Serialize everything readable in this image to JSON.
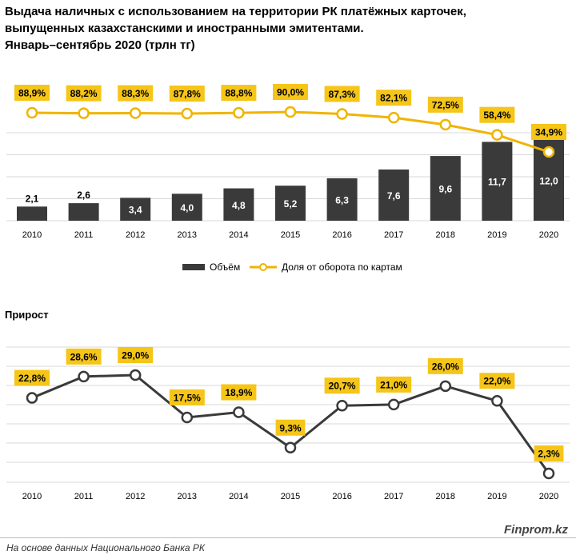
{
  "title": {
    "line1": "Выдача наличных с использованием на территории РК платёжных карточек,",
    "line2": "выпущенных казахстанскими и иностранными эмитентами.",
    "line3": "Январь–сентябрь 2020  (трлн тг)"
  },
  "growth_title": "Прирост",
  "source": "На основе данных  Национального  Банка РК",
  "brand": "Finprom.kz",
  "colors": {
    "bar": "#3a3a3a",
    "line_top": "#f0b400",
    "line_bottom": "#3a3a3a",
    "label_bg": "#f5c518",
    "grid": "#d9d9d9"
  },
  "chart_data": [
    {
      "type": "bar",
      "categories": [
        "2010",
        "2011",
        "2012",
        "2013",
        "2014",
        "2015",
        "2016",
        "2017",
        "2018",
        "2019",
        "2020"
      ],
      "series": [
        {
          "name": "Объём",
          "type": "bar",
          "values": [
            2.1,
            2.6,
            3.4,
            4.0,
            4.8,
            5.2,
            6.3,
            7.6,
            9.6,
            11.7,
            12.0
          ],
          "labels": [
            "2,1",
            "2,6",
            "3,4",
            "4,0",
            "4,8",
            "5,2",
            "6,3",
            "7,6",
            "9,6",
            "11,7",
            "12,0"
          ]
        },
        {
          "name": "Доля от оборота по картам",
          "type": "line",
          "unit": "%",
          "values": [
            88.9,
            88.2,
            88.3,
            87.8,
            88.8,
            90.0,
            87.3,
            82.1,
            72.5,
            58.4,
            34.9
          ],
          "labels": [
            "88,9%",
            "88,2%",
            "88,3%",
            "87,8%",
            "88,8%",
            "90,0%",
            "87,3%",
            "82,1%",
            "72,5%",
            "58,4%",
            "34,9%"
          ]
        }
      ],
      "legend_position": "bottom"
    },
    {
      "type": "line",
      "title": "Прирост",
      "categories": [
        "2010",
        "2011",
        "2012",
        "2013",
        "2014",
        "2015",
        "2016",
        "2017",
        "2018",
        "2019",
        "2020"
      ],
      "series": [
        {
          "values": [
            22.8,
            28.6,
            29.0,
            17.5,
            18.9,
            9.3,
            20.7,
            21.0,
            26.0,
            22.0,
            2.3
          ],
          "labels": [
            "22,8%",
            "28,6%",
            "29,0%",
            "17,5%",
            "18,9%",
            "9,3%",
            "20,7%",
            "21,0%",
            "26,0%",
            "22,0%",
            "2,3%"
          ]
        }
      ]
    }
  ]
}
